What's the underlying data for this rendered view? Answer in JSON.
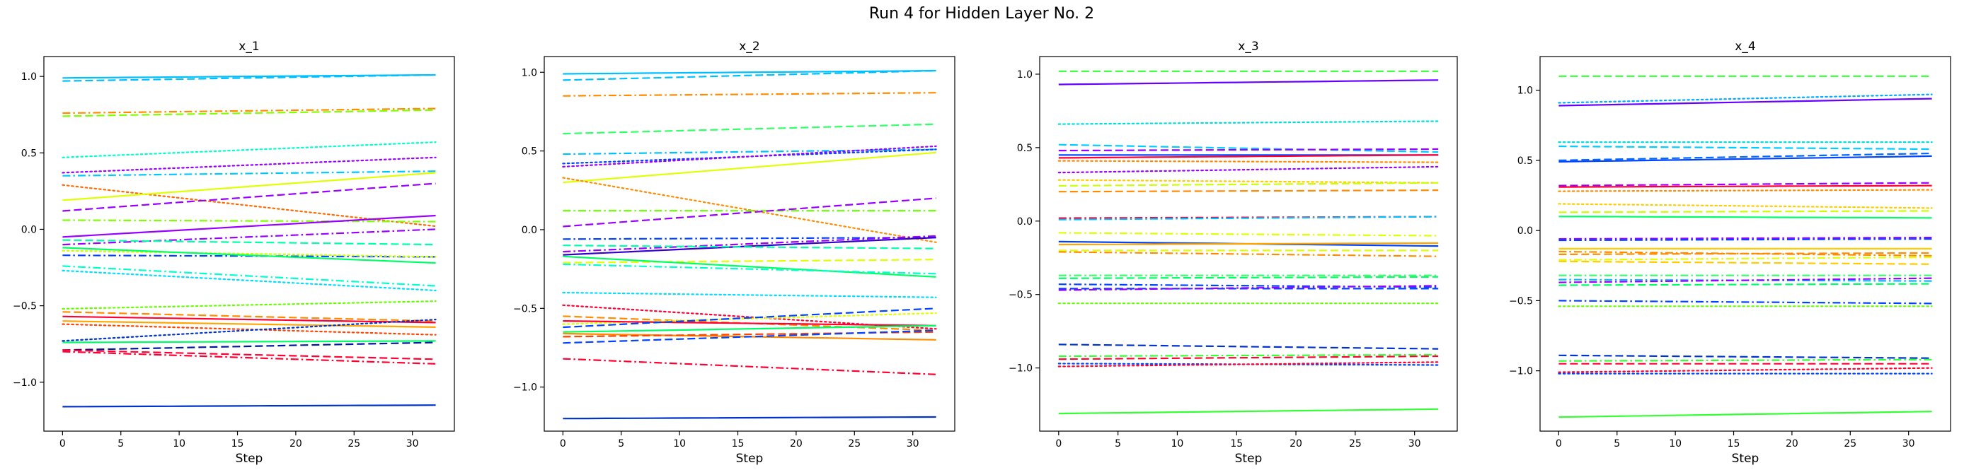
{
  "figure": {
    "title": "Run 4 for Hidden Layer No. 2"
  },
  "chart_data": [
    {
      "type": "line",
      "title": "x_1",
      "xlabel": "Step",
      "ylabel": "",
      "xlim": [
        -1.6,
        33.6
      ],
      "ylim": [
        -1.32,
        1.13
      ],
      "xticks": [
        0,
        5,
        10,
        15,
        20,
        25,
        30
      ],
      "yticks": [
        -1.0,
        -0.5,
        0.0,
        0.5,
        1.0
      ],
      "ytick_labels": [
        "−1.0",
        "−0.5",
        "0.0",
        "0.5",
        "1.0"
      ],
      "grid": false,
      "series": [
        {
          "color": "#00bfff",
          "style": "solid",
          "start": 0.99,
          "end": 1.01
        },
        {
          "color": "#00bfff",
          "style": "dashed",
          "start": 0.97,
          "end": 1.01
        },
        {
          "color": "#ff8c00",
          "style": "dashdot",
          "start": 0.76,
          "end": 0.79
        },
        {
          "color": "#7fff00",
          "style": "dashed",
          "start": 0.74,
          "end": 0.78
        },
        {
          "color": "#00ffcc",
          "style": "dotted",
          "start": 0.47,
          "end": 0.57
        },
        {
          "color": "#9900ff",
          "style": "dotted",
          "start": 0.37,
          "end": 0.47
        },
        {
          "color": "#00c8ff",
          "style": "dashdot",
          "start": 0.35,
          "end": 0.38
        },
        {
          "color": "#ff6a00",
          "style": "dotted",
          "start": 0.29,
          "end": 0.02
        },
        {
          "color": "#9900ff",
          "style": "dashed",
          "start": 0.12,
          "end": 0.3
        },
        {
          "color": "#e0ff00",
          "style": "solid",
          "start": 0.19,
          "end": 0.37
        },
        {
          "color": "#7fff00",
          "style": "dashdot",
          "start": 0.06,
          "end": 0.05
        },
        {
          "color": "#9900ff",
          "style": "solid",
          "start": -0.05,
          "end": 0.09
        },
        {
          "color": "#9900ff",
          "style": "dashdot",
          "start": -0.1,
          "end": 0.0
        },
        {
          "color": "#0044ff",
          "style": "dashdot",
          "start": -0.17,
          "end": -0.18
        },
        {
          "color": "#ccff00",
          "style": "dotted",
          "start": -0.14,
          "end": -0.18
        },
        {
          "color": "#00ff66",
          "style": "solid",
          "start": -0.12,
          "end": -0.22
        },
        {
          "color": "#00ffaa",
          "style": "dashed",
          "start": -0.07,
          "end": -0.1
        },
        {
          "color": "#00ffcc",
          "style": "dashdot",
          "start": -0.24,
          "end": -0.37
        },
        {
          "color": "#00ddff",
          "style": "dotted",
          "start": -0.27,
          "end": -0.4
        },
        {
          "color": "#66ff00",
          "style": "dotted",
          "start": -0.52,
          "end": -0.47
        },
        {
          "color": "#ff8c00",
          "style": "dashed",
          "start": -0.54,
          "end": -0.6
        },
        {
          "color": "#ff0033",
          "style": "solid",
          "start": -0.57,
          "end": -0.61
        },
        {
          "color": "#ffa500",
          "style": "solid",
          "start": -0.6,
          "end": -0.64
        },
        {
          "color": "#ff4400",
          "style": "dotted",
          "start": -0.62,
          "end": -0.69
        },
        {
          "color": "#00ff66",
          "style": "solid",
          "start": -0.74,
          "end": -0.73
        },
        {
          "color": "#0033cc",
          "style": "dotted",
          "start": -0.73,
          "end": -0.59
        },
        {
          "color": "#001a99",
          "style": "dashed",
          "start": -0.79,
          "end": -0.74
        },
        {
          "color": "#ff0033",
          "style": "dashed",
          "start": -0.79,
          "end": -0.85
        },
        {
          "color": "#ff0033",
          "style": "dashdot",
          "start": -0.8,
          "end": -0.88
        },
        {
          "color": "#0033cc",
          "style": "solid",
          "start": -1.16,
          "end": -1.15
        }
      ]
    },
    {
      "type": "line",
      "title": "x_2",
      "xlabel": "Step",
      "ylabel": "",
      "xlim": [
        -1.6,
        33.6
      ],
      "ylim": [
        -1.28,
        1.1
      ],
      "xticks": [
        0,
        5,
        10,
        15,
        20,
        25,
        30
      ],
      "yticks": [
        -1.0,
        -0.5,
        0.0,
        0.5,
        1.0
      ],
      "ytick_labels": [
        "−1.0",
        "−0.5",
        "0.0",
        "0.5",
        "1.0"
      ],
      "grid": false,
      "series": [
        {
          "color": "#00bfff",
          "style": "solid",
          "start": 0.99,
          "end": 1.01
        },
        {
          "color": "#00bfff",
          "style": "dashed",
          "start": 0.95,
          "end": 1.01
        },
        {
          "color": "#ff8c00",
          "style": "dashdot",
          "start": 0.85,
          "end": 0.87
        },
        {
          "color": "#33ff66",
          "style": "dashed",
          "start": 0.61,
          "end": 0.67
        },
        {
          "color": "#00bfff",
          "style": "dashdot",
          "start": 0.48,
          "end": 0.51
        },
        {
          "color": "#0044ff",
          "style": "dotted",
          "start": 0.42,
          "end": 0.51
        },
        {
          "color": "#9900ff",
          "style": "dotted",
          "start": 0.4,
          "end": 0.53
        },
        {
          "color": "#e0ff00",
          "style": "solid",
          "start": 0.3,
          "end": 0.49
        },
        {
          "color": "#ff8c00",
          "style": "dotted",
          "start": 0.33,
          "end": -0.08
        },
        {
          "color": "#66ff00",
          "style": "dashdot",
          "start": 0.12,
          "end": 0.12
        },
        {
          "color": "#9900ff",
          "style": "dashed",
          "start": 0.02,
          "end": 0.2
        },
        {
          "color": "#0044ff",
          "style": "dashdot",
          "start": -0.06,
          "end": -0.05
        },
        {
          "color": "#9900ff",
          "style": "dashdot",
          "start": -0.14,
          "end": -0.04
        },
        {
          "color": "#3300cc",
          "style": "solid",
          "start": -0.16,
          "end": -0.05
        },
        {
          "color": "#00ffaa",
          "style": "dashed",
          "start": -0.1,
          "end": -0.12
        },
        {
          "color": "#e0ff00",
          "style": "dashed",
          "start": -0.21,
          "end": -0.19
        },
        {
          "color": "#00ff66",
          "style": "solid",
          "start": -0.17,
          "end": -0.3
        },
        {
          "color": "#00ffcc",
          "style": "dashdot",
          "start": -0.22,
          "end": -0.28
        },
        {
          "color": "#00ddff",
          "style": "dotted",
          "start": -0.4,
          "end": -0.43
        },
        {
          "color": "#ff0033",
          "style": "dotted",
          "start": -0.48,
          "end": -0.63
        },
        {
          "color": "#ff8c00",
          "style": "dashed",
          "start": -0.55,
          "end": -0.64
        },
        {
          "color": "#e0ff00",
          "style": "dotted",
          "start": -0.6,
          "end": -0.53
        },
        {
          "color": "#ff0033",
          "style": "solid",
          "start": -0.58,
          "end": -0.61
        },
        {
          "color": "#00ff66",
          "style": "solid",
          "start": -0.65,
          "end": -0.61
        },
        {
          "color": "#0044ff",
          "style": "dashed",
          "start": -0.62,
          "end": -0.5
        },
        {
          "color": "#ff8c00",
          "style": "solid",
          "start": -0.66,
          "end": -0.7
        },
        {
          "color": "#ff4400",
          "style": "dashed",
          "start": -0.68,
          "end": -0.65
        },
        {
          "color": "#0044ff",
          "style": "dashed",
          "start": -0.72,
          "end": -0.64
        },
        {
          "color": "#ff0033",
          "style": "dashdot",
          "start": -0.82,
          "end": -0.92
        },
        {
          "color": "#0033cc",
          "style": "solid",
          "start": -1.2,
          "end": -1.19
        }
      ]
    },
    {
      "type": "line",
      "title": "x_3",
      "xlabel": "Step",
      "ylabel": "",
      "xlim": [
        -1.6,
        33.6
      ],
      "ylim": [
        -1.43,
        1.12
      ],
      "xticks": [
        0,
        5,
        10,
        15,
        20,
        25,
        30
      ],
      "yticks": [
        -1.0,
        -0.5,
        0.0,
        0.5,
        1.0
      ],
      "ytick_labels": [
        "−1.0",
        "−0.5",
        "0.0",
        "0.5",
        "1.0"
      ],
      "grid": false,
      "series": [
        {
          "color": "#33ff33",
          "style": "dashed",
          "start": 1.02,
          "end": 1.02
        },
        {
          "color": "#6600ff",
          "style": "solid",
          "start": 0.93,
          "end": 0.96
        },
        {
          "color": "#00dddd",
          "style": "dotted",
          "start": 0.66,
          "end": 0.68
        },
        {
          "color": "#00ccff",
          "style": "dashed",
          "start": 0.52,
          "end": 0.47
        },
        {
          "color": "#9900ff",
          "style": "dashed",
          "start": 0.48,
          "end": 0.49
        },
        {
          "color": "#0044ff",
          "style": "solid",
          "start": 0.45,
          "end": 0.45
        },
        {
          "color": "#ff0033",
          "style": "solid",
          "start": 0.43,
          "end": 0.45
        },
        {
          "color": "#ff8c00",
          "style": "dotted",
          "start": 0.41,
          "end": 0.4
        },
        {
          "color": "#9900ff",
          "style": "dotted",
          "start": 0.33,
          "end": 0.37
        },
        {
          "color": "#ffcc00",
          "style": "dotted",
          "start": 0.28,
          "end": 0.26
        },
        {
          "color": "#ccff00",
          "style": "dashed",
          "start": 0.24,
          "end": 0.26
        },
        {
          "color": "#ff8c00",
          "style": "dashed",
          "start": 0.2,
          "end": 0.21
        },
        {
          "color": "#ff0033",
          "style": "dashdot",
          "start": 0.02,
          "end": 0.03
        },
        {
          "color": "#00bfff",
          "style": "dashdot",
          "start": 0.01,
          "end": 0.03
        },
        {
          "color": "#e0ff00",
          "style": "dashdot",
          "start": -0.08,
          "end": -0.1
        },
        {
          "color": "#0044ff",
          "style": "solid",
          "start": -0.14,
          "end": -0.17
        },
        {
          "color": "#ffa500",
          "style": "solid",
          "start": -0.16,
          "end": -0.15
        },
        {
          "color": "#e0ff00",
          "style": "dashed",
          "start": -0.2,
          "end": -0.2
        },
        {
          "color": "#ff8c00",
          "style": "dashdot",
          "start": -0.21,
          "end": -0.24
        },
        {
          "color": "#33ff66",
          "style": "dashdot",
          "start": -0.37,
          "end": -0.37
        },
        {
          "color": "#00ff66",
          "style": "dashed",
          "start": -0.39,
          "end": -0.38
        },
        {
          "color": "#0044ff",
          "style": "dashdot",
          "start": -0.43,
          "end": -0.45
        },
        {
          "color": "#0044ff",
          "style": "dashed",
          "start": -0.46,
          "end": -0.46
        },
        {
          "color": "#9900ff",
          "style": "dashdot",
          "start": -0.47,
          "end": -0.44
        },
        {
          "color": "#66ff00",
          "style": "dotted",
          "start": -0.56,
          "end": -0.56
        },
        {
          "color": "#0033cc",
          "style": "dashed",
          "start": -0.84,
          "end": -0.87
        },
        {
          "color": "#33ff33",
          "style": "dashdot",
          "start": -0.92,
          "end": -0.91
        },
        {
          "color": "#ff0033",
          "style": "dashed",
          "start": -0.94,
          "end": -0.92
        },
        {
          "color": "#0044ff",
          "style": "dotted",
          "start": -0.97,
          "end": -0.98
        },
        {
          "color": "#ff0033",
          "style": "dotted",
          "start": -0.99,
          "end": -0.96
        },
        {
          "color": "#33ff33",
          "style": "solid",
          "start": -1.31,
          "end": -1.28
        }
      ]
    },
    {
      "type": "line",
      "title": "x_4",
      "xlabel": "Step",
      "ylabel": "",
      "xlim": [
        -1.6,
        33.6
      ],
      "ylim": [
        -1.43,
        1.24
      ],
      "xticks": [
        0,
        5,
        10,
        15,
        20,
        25,
        30
      ],
      "yticks": [
        -1.0,
        -0.5,
        0.0,
        0.5,
        1.0
      ],
      "ytick_labels": [
        "−1.0",
        "−0.5",
        "0.0",
        "0.5",
        "1.0"
      ],
      "grid": false,
      "series": [
        {
          "color": "#33ff33",
          "style": "dashed",
          "start": 1.1,
          "end": 1.1
        },
        {
          "color": "#00aaff",
          "style": "dotted",
          "start": 0.91,
          "end": 0.97
        },
        {
          "color": "#6600ff",
          "style": "solid",
          "start": 0.89,
          "end": 0.94
        },
        {
          "color": "#00dddd",
          "style": "dotted",
          "start": 0.63,
          "end": 0.63
        },
        {
          "color": "#00ccff",
          "style": "dashed",
          "start": 0.6,
          "end": 0.58
        },
        {
          "color": "#0066ff",
          "style": "dashed",
          "start": 0.5,
          "end": 0.55
        },
        {
          "color": "#0044ff",
          "style": "solid",
          "start": 0.49,
          "end": 0.53
        },
        {
          "color": "#9900ff",
          "style": "dashed",
          "start": 0.32,
          "end": 0.34
        },
        {
          "color": "#ff0033",
          "style": "solid",
          "start": 0.31,
          "end": 0.32
        },
        {
          "color": "#ff8c00",
          "style": "dotted",
          "start": 0.28,
          "end": 0.29
        },
        {
          "color": "#ffcc00",
          "style": "dotted",
          "start": 0.19,
          "end": 0.16
        },
        {
          "color": "#ccff00",
          "style": "dashed",
          "start": 0.13,
          "end": 0.14
        },
        {
          "color": "#00ff66",
          "style": "solid",
          "start": 0.1,
          "end": 0.09
        },
        {
          "color": "#9900ff",
          "style": "dashdot",
          "start": -0.06,
          "end": -0.05
        },
        {
          "color": "#0044ff",
          "style": "dashdot",
          "start": -0.07,
          "end": -0.06
        },
        {
          "color": "#ffcc00",
          "style": "solid",
          "start": -0.13,
          "end": -0.13
        },
        {
          "color": "#ff8c00",
          "style": "dashdot",
          "start": -0.15,
          "end": -0.18
        },
        {
          "color": "#ff8c00",
          "style": "dashed",
          "start": -0.17,
          "end": -0.16
        },
        {
          "color": "#e0ff00",
          "style": "dashdot",
          "start": -0.21,
          "end": -0.19
        },
        {
          "color": "#ffcc00",
          "style": "dashed",
          "start": -0.22,
          "end": -0.24
        },
        {
          "color": "#33ff66",
          "style": "dashdot",
          "start": -0.32,
          "end": -0.32
        },
        {
          "color": "#00bbff",
          "style": "dashdot",
          "start": -0.35,
          "end": -0.36
        },
        {
          "color": "#9900ff",
          "style": "dashdot",
          "start": -0.37,
          "end": -0.34
        },
        {
          "color": "#00ff66",
          "style": "dashed",
          "start": -0.39,
          "end": -0.38
        },
        {
          "color": "#0044ff",
          "style": "dashdot",
          "start": -0.5,
          "end": -0.52
        },
        {
          "color": "#66ff00",
          "style": "dotted",
          "start": -0.54,
          "end": -0.54
        },
        {
          "color": "#0033cc",
          "style": "dashed",
          "start": -0.89,
          "end": -0.91
        },
        {
          "color": "#33ff33",
          "style": "dashdot",
          "start": -0.93,
          "end": -0.92
        },
        {
          "color": "#ff0033",
          "style": "dashed",
          "start": -0.95,
          "end": -0.95
        },
        {
          "color": "#ff0033",
          "style": "dotted",
          "start": -1.01,
          "end": -0.98
        },
        {
          "color": "#0044ff",
          "style": "dotted",
          "start": -1.02,
          "end": -1.02
        },
        {
          "color": "#33ff33",
          "style": "solid",
          "start": -1.33,
          "end": -1.29
        }
      ]
    }
  ]
}
